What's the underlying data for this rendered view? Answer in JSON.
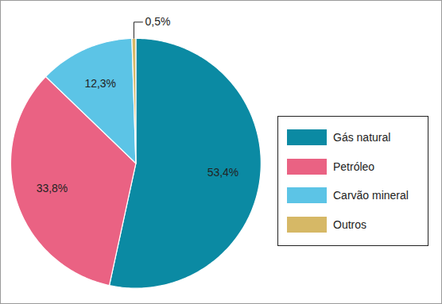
{
  "chart_data": {
    "type": "pie",
    "categories": [
      "Gás natural",
      "Petróleo",
      "Carvão mineral",
      "Outros"
    ],
    "values": [
      53.4,
      33.8,
      12.3,
      0.5
    ],
    "value_labels": [
      "53,4%",
      "33,8%",
      "12,3%",
      "0,5%"
    ],
    "colors": [
      "#0b8aa3",
      "#ea6283",
      "#5cc4e6",
      "#d6b866"
    ],
    "legend": "right",
    "data_labels": true
  }
}
